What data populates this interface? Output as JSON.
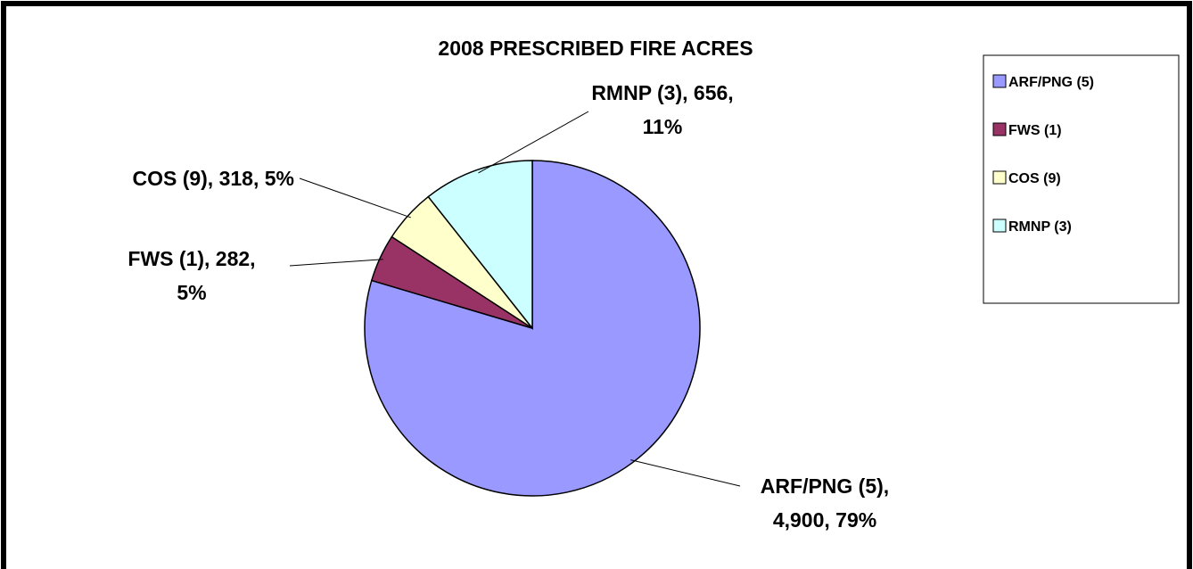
{
  "chart_data": {
    "type": "pie",
    "title": "2008 PRESCRIBED FIRE ACRES",
    "categories": [
      "ARF/PNG (5)",
      "FWS (1)",
      "COS (9)",
      "RMNP (3)"
    ],
    "values": [
      4900,
      282,
      318,
      656
    ],
    "value_labels": [
      [
        "ARF/PNG (5),",
        "4,900, 79%"
      ],
      [
        "FWS (1), 282,",
        "5%"
      ],
      [
        "COS (9), 318, 5%"
      ],
      [
        "RMNP (3), 656,",
        "11%"
      ]
    ],
    "colors": [
      "#9999ff",
      "#993366",
      "#ffffcc",
      "#ccffff"
    ],
    "legend": "right"
  }
}
